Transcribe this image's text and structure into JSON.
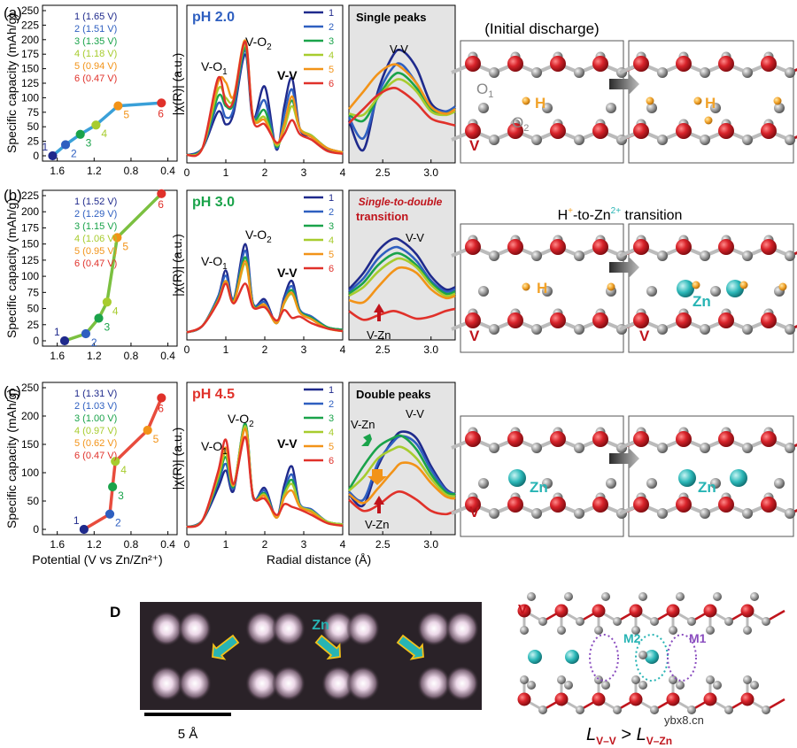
{
  "panel_letters": [
    "(a)",
    "(b)",
    "(c)"
  ],
  "panel_d_letter": "D",
  "chart_data": [
    {
      "type": "line",
      "panel": "a",
      "chart": "capacity-potential",
      "ylabel": "Specific capacity (mAh/g)",
      "xlabel": "Potential (V vs Zn/Zn²⁺)",
      "x_ticks": [
        "1.6",
        "1.2",
        "0.8",
        "0.4"
      ],
      "y_ticks": [
        "0",
        "25",
        "50",
        "75",
        "100",
        "125",
        "150",
        "175",
        "200",
        "225",
        "250"
      ],
      "xlim": [
        1.76,
        0.3
      ],
      "ylim": [
        0,
        250
      ],
      "legend": [
        "1 (1.65 V)",
        "2 (1.51 V)",
        "3 (1.35 V)",
        "4 (1.18 V)",
        "5 (0.94 V)",
        "6 (0.47 V)"
      ],
      "point_labels": [
        "1",
        "2",
        "3",
        "4",
        "5",
        "6"
      ],
      "points": [
        [
          1.65,
          0
        ],
        [
          1.51,
          19
        ],
        [
          1.35,
          37
        ],
        [
          1.18,
          53
        ],
        [
          0.94,
          86
        ],
        [
          0.47,
          91
        ]
      ]
    },
    {
      "type": "line",
      "panel": "b",
      "chart": "capacity-potential",
      "ylabel": "Specific capacity (mAh/g)",
      "xlabel": "Potential (V vs Zn/Zn²⁺)",
      "x_ticks": [
        "1.6",
        "1.2",
        "0.8",
        "0.4"
      ],
      "y_ticks": [
        "0",
        "25",
        "50",
        "75",
        "100",
        "125",
        "150",
        "175",
        "200",
        "225"
      ],
      "xlim": [
        1.76,
        0.3
      ],
      "ylim": [
        0,
        225
      ],
      "legend": [
        "1 (1.52 V)",
        "2 (1.29 V)",
        "3 (1.15 V)",
        "4 (1.06 V)",
        "5 (0.95 V)",
        "6 (0.47 V)"
      ],
      "point_labels": [
        "1",
        "2",
        "3",
        "4",
        "5",
        "6"
      ],
      "points": [
        [
          1.52,
          0
        ],
        [
          1.29,
          11
        ],
        [
          1.15,
          35
        ],
        [
          1.06,
          60
        ],
        [
          0.95,
          160
        ],
        [
          0.47,
          228
        ]
      ]
    },
    {
      "type": "line",
      "panel": "c",
      "chart": "capacity-potential",
      "ylabel": "Specific capacity (mAh/g)",
      "xlabel": "Potential (V vs Zn/Zn²⁺)",
      "x_ticks": [
        "1.6",
        "1.2",
        "0.8",
        "0.4"
      ],
      "y_ticks": [
        "0",
        "50",
        "100",
        "150",
        "200",
        "250"
      ],
      "xlim": [
        1.76,
        0.3
      ],
      "ylim": [
        0,
        250
      ],
      "legend": [
        "1 (1.31 V)",
        "2 (1.03 V)",
        "3 (1.00 V)",
        "4 (0.97 V)",
        "5 (0.62 V)",
        "6 (0.47 V)"
      ],
      "point_labels": [
        "1",
        "2",
        "3",
        "4",
        "5",
        "6"
      ],
      "points": [
        [
          1.31,
          0
        ],
        [
          1.03,
          27
        ],
        [
          1.0,
          75
        ],
        [
          0.97,
          120
        ],
        [
          0.62,
          175
        ],
        [
          0.47,
          232
        ]
      ]
    },
    {
      "type": "line",
      "panel": "a",
      "chart": "exafs-r-space",
      "title": "pH 2.0",
      "ylabel": "|χ(R)| (a.u.)",
      "xlabel": "Radial distance (Å)",
      "x_ticks": [
        "0",
        "1",
        "2",
        "3",
        "4"
      ],
      "xlim": [
        0,
        4
      ],
      "annotations": [
        "V-O1",
        "V-O2",
        "V-V"
      ],
      "legend": [
        "1",
        "2",
        "3",
        "4",
        "5",
        "6"
      ],
      "x": [
        0,
        0.4,
        0.8,
        1.0,
        1.2,
        1.5,
        1.7,
        2.0,
        2.3,
        2.5,
        2.7,
        2.9,
        3.2,
        3.6,
        4.0
      ],
      "series": [
        {
          "name": "1",
          "values": [
            0.03,
            0.08,
            0.34,
            0.25,
            0.33,
            0.75,
            0.29,
            0.52,
            0.07,
            0.38,
            0.58,
            0.22,
            0.16,
            0.07,
            0.05
          ]
        },
        {
          "name": "2",
          "values": [
            0.03,
            0.08,
            0.4,
            0.3,
            0.36,
            0.78,
            0.3,
            0.42,
            0.08,
            0.32,
            0.5,
            0.22,
            0.17,
            0.08,
            0.05
          ]
        },
        {
          "name": "3",
          "values": [
            0.03,
            0.08,
            0.45,
            0.38,
            0.4,
            0.8,
            0.3,
            0.35,
            0.09,
            0.26,
            0.42,
            0.22,
            0.17,
            0.08,
            0.05
          ]
        },
        {
          "name": "4",
          "values": [
            0.03,
            0.08,
            0.5,
            0.44,
            0.43,
            0.82,
            0.3,
            0.3,
            0.1,
            0.22,
            0.38,
            0.22,
            0.17,
            0.08,
            0.05
          ]
        },
        {
          "name": "5",
          "values": [
            0.03,
            0.08,
            0.55,
            0.55,
            0.45,
            0.85,
            0.3,
            0.28,
            0.11,
            0.25,
            0.45,
            0.22,
            0.16,
            0.08,
            0.05
          ]
        },
        {
          "name": "6",
          "values": [
            0.03,
            0.08,
            0.58,
            0.4,
            0.42,
            0.84,
            0.28,
            0.25,
            0.12,
            0.18,
            0.28,
            0.18,
            0.14,
            0.06,
            0.04
          ]
        }
      ]
    },
    {
      "type": "line",
      "panel": "b",
      "chart": "exafs-r-space",
      "title": "pH 3.0",
      "ylabel": "|χ(R)| (a.u.)",
      "xlabel": "Radial distance (Å)",
      "x_ticks": [
        "0",
        "1",
        "2",
        "3",
        "4"
      ],
      "xlim": [
        0,
        4
      ],
      "annotations": [
        "V-O1",
        "V-O2",
        "V-V"
      ],
      "legend": [
        "1",
        "2",
        "3",
        "4",
        "5",
        "6"
      ],
      "x": [
        0,
        0.4,
        0.8,
        1.0,
        1.2,
        1.5,
        1.7,
        2.0,
        2.3,
        2.5,
        2.7,
        2.9,
        3.2,
        3.6,
        4.0
      ],
      "series": [
        {
          "name": "1",
          "values": [
            0.03,
            0.08,
            0.3,
            0.5,
            0.28,
            0.7,
            0.25,
            0.28,
            0.1,
            0.3,
            0.42,
            0.2,
            0.15,
            0.07,
            0.05
          ]
        },
        {
          "name": "2",
          "values": [
            0.03,
            0.08,
            0.3,
            0.46,
            0.28,
            0.65,
            0.25,
            0.26,
            0.1,
            0.28,
            0.38,
            0.2,
            0.15,
            0.07,
            0.05
          ]
        },
        {
          "name": "3",
          "values": [
            0.03,
            0.08,
            0.28,
            0.42,
            0.27,
            0.6,
            0.24,
            0.24,
            0.1,
            0.26,
            0.35,
            0.19,
            0.14,
            0.07,
            0.05
          ]
        },
        {
          "name": "4",
          "values": [
            0.03,
            0.08,
            0.27,
            0.4,
            0.26,
            0.55,
            0.23,
            0.23,
            0.1,
            0.25,
            0.32,
            0.18,
            0.13,
            0.06,
            0.04
          ]
        },
        {
          "name": "5",
          "values": [
            0.03,
            0.08,
            0.27,
            0.42,
            0.26,
            0.57,
            0.23,
            0.24,
            0.1,
            0.26,
            0.33,
            0.18,
            0.13,
            0.06,
            0.04
          ]
        },
        {
          "name": "6",
          "values": [
            0.03,
            0.08,
            0.26,
            0.4,
            0.25,
            0.4,
            0.22,
            0.22,
            0.12,
            0.2,
            0.14,
            0.15,
            0.1,
            0.06,
            0.04
          ]
        }
      ]
    },
    {
      "type": "line",
      "panel": "c",
      "chart": "exafs-r-space",
      "title": "pH 4.5",
      "ylabel": "|χ(R)| (a.u.)",
      "xlabel": "Radial distance (Å)",
      "x_ticks": [
        "0",
        "1",
        "2",
        "3",
        "4"
      ],
      "xlim": [
        0,
        4
      ],
      "annotations": [
        "V-O1",
        "V-O2",
        "V-V"
      ],
      "legend": [
        "1",
        "2",
        "3",
        "4",
        "5",
        "6"
      ],
      "x": [
        0,
        0.4,
        0.8,
        1.0,
        1.2,
        1.5,
        1.7,
        2.0,
        2.3,
        2.5,
        2.7,
        2.9,
        3.2,
        3.6,
        4.0
      ],
      "series": [
        {
          "name": "1",
          "values": [
            0.03,
            0.08,
            0.32,
            0.45,
            0.3,
            0.78,
            0.25,
            0.32,
            0.1,
            0.34,
            0.48,
            0.2,
            0.16,
            0.07,
            0.05
          ]
        },
        {
          "name": "2",
          "values": [
            0.03,
            0.08,
            0.36,
            0.5,
            0.32,
            0.8,
            0.26,
            0.3,
            0.1,
            0.3,
            0.42,
            0.2,
            0.16,
            0.07,
            0.05
          ]
        },
        {
          "name": "3",
          "values": [
            0.03,
            0.08,
            0.38,
            0.55,
            0.33,
            0.8,
            0.26,
            0.28,
            0.1,
            0.28,
            0.38,
            0.19,
            0.15,
            0.07,
            0.05
          ]
        },
        {
          "name": "4",
          "values": [
            0.03,
            0.08,
            0.4,
            0.58,
            0.34,
            0.78,
            0.26,
            0.27,
            0.1,
            0.27,
            0.35,
            0.19,
            0.15,
            0.07,
            0.05
          ]
        },
        {
          "name": "5",
          "values": [
            0.03,
            0.08,
            0.42,
            0.62,
            0.34,
            0.76,
            0.26,
            0.26,
            0.1,
            0.25,
            0.3,
            0.18,
            0.14,
            0.06,
            0.04
          ]
        },
        {
          "name": "6",
          "values": [
            0.03,
            0.08,
            0.44,
            0.68,
            0.35,
            0.7,
            0.26,
            0.24,
            0.12,
            0.2,
            0.18,
            0.16,
            0.12,
            0.06,
            0.04
          ]
        }
      ]
    },
    {
      "type": "line",
      "panel": "a",
      "chart": "zoom",
      "title": "Single peaks",
      "x_ticks": [
        "2.5",
        "3.0"
      ],
      "xlim": [
        2.15,
        3.25
      ],
      "annotations": [
        "V-V"
      ],
      "x": [
        2.15,
        2.3,
        2.45,
        2.6,
        2.7,
        2.85,
        3.0,
        3.15,
        3.25
      ],
      "series": [
        {
          "name": "1",
          "values": [
            0.3,
            0.05,
            0.55,
            0.85,
            0.9,
            0.75,
            0.45,
            0.38,
            0.42
          ]
        },
        {
          "name": "2",
          "values": [
            0.33,
            0.15,
            0.52,
            0.75,
            0.78,
            0.62,
            0.42,
            0.38,
            0.42
          ]
        },
        {
          "name": "3",
          "values": [
            0.35,
            0.3,
            0.5,
            0.68,
            0.7,
            0.58,
            0.4,
            0.36,
            0.4
          ]
        },
        {
          "name": "4",
          "values": [
            0.36,
            0.35,
            0.5,
            0.63,
            0.65,
            0.55,
            0.38,
            0.35,
            0.38
          ]
        },
        {
          "name": "5",
          "values": [
            0.4,
            0.55,
            0.7,
            0.78,
            0.75,
            0.62,
            0.42,
            0.36,
            0.4
          ]
        },
        {
          "name": "6",
          "values": [
            0.28,
            0.4,
            0.52,
            0.58,
            0.55,
            0.45,
            0.32,
            0.28,
            0.26
          ]
        }
      ]
    },
    {
      "type": "line",
      "panel": "b",
      "chart": "zoom",
      "title_line1": "Single-to-double",
      "title_line2": "transition",
      "x_ticks": [
        "2.5",
        "3.0"
      ],
      "xlim": [
        2.15,
        3.25
      ],
      "annotations": [
        "V-V",
        "V-Zn"
      ],
      "x": [
        2.15,
        2.3,
        2.45,
        2.6,
        2.7,
        2.85,
        3.0,
        3.15,
        3.25
      ],
      "series": [
        {
          "name": "1",
          "values": [
            0.4,
            0.55,
            0.75,
            0.86,
            0.84,
            0.72,
            0.52,
            0.4,
            0.42
          ]
        },
        {
          "name": "2",
          "values": [
            0.38,
            0.5,
            0.68,
            0.78,
            0.77,
            0.66,
            0.48,
            0.38,
            0.4
          ]
        },
        {
          "name": "3",
          "values": [
            0.36,
            0.46,
            0.62,
            0.72,
            0.72,
            0.62,
            0.46,
            0.36,
            0.38
          ]
        },
        {
          "name": "4",
          "values": [
            0.34,
            0.42,
            0.56,
            0.66,
            0.68,
            0.6,
            0.44,
            0.34,
            0.36
          ]
        },
        {
          "name": "5",
          "values": [
            0.3,
            0.28,
            0.42,
            0.56,
            0.6,
            0.55,
            0.4,
            0.32,
            0.34
          ]
        },
        {
          "name": "6",
          "values": [
            0.2,
            0.12,
            0.16,
            0.2,
            0.18,
            0.13,
            0.15,
            0.2,
            0.22
          ]
        }
      ]
    },
    {
      "type": "line",
      "panel": "c",
      "chart": "zoom",
      "title": "Double peaks",
      "x_ticks": [
        "2.5",
        "3.0"
      ],
      "xlim": [
        2.15,
        3.25
      ],
      "annotations": [
        "V-V",
        "V-Zn",
        "V-Zn"
      ],
      "x": [
        2.15,
        2.3,
        2.45,
        2.6,
        2.7,
        2.85,
        3.0,
        3.15,
        3.25
      ],
      "series": [
        {
          "name": "1",
          "values": [
            0.3,
            0.2,
            0.55,
            0.78,
            0.86,
            0.8,
            0.55,
            0.35,
            0.3
          ]
        },
        {
          "name": "2",
          "values": [
            0.32,
            0.25,
            0.58,
            0.76,
            0.82,
            0.75,
            0.52,
            0.34,
            0.3
          ]
        },
        {
          "name": "3",
          "values": [
            0.34,
            0.55,
            0.72,
            0.8,
            0.82,
            0.7,
            0.48,
            0.32,
            0.3
          ]
        },
        {
          "name": "4",
          "values": [
            0.33,
            0.45,
            0.62,
            0.7,
            0.72,
            0.62,
            0.44,
            0.3,
            0.28
          ]
        },
        {
          "name": "5",
          "values": [
            0.3,
            0.22,
            0.35,
            0.5,
            0.58,
            0.55,
            0.4,
            0.28,
            0.26
          ]
        },
        {
          "name": "6",
          "values": [
            0.25,
            0.15,
            0.2,
            0.3,
            0.32,
            0.25,
            0.15,
            0.12,
            0.15
          ]
        }
      ]
    }
  ],
  "series_colors": [
    "#1f2a8c",
    "#2e5fc0",
    "#1aa34a",
    "#a7cc2e",
    "#f29318",
    "#e0312a"
  ],
  "capacity_line_colors": [
    "#3aa0d8",
    "#7bc040",
    "#e84c3d"
  ],
  "zoom_bg": "#e4e4e4",
  "structures": {
    "a_title": "(Initial discharge)",
    "a_labels": [
      "O",
      "1",
      "O",
      "2",
      "H",
      "H",
      "V"
    ],
    "b_title_part1": "H",
    "b_title_part2": "-to-Zn",
    "b_title_part3": " transition",
    "b_title_sup1": "+",
    "b_title_sup2": "2+",
    "b_labels": [
      "H",
      "Zn",
      "V",
      "V"
    ],
    "c_labels": [
      "Zn",
      "Zn",
      "V"
    ],
    "atom_v_color": "#c0141c",
    "atom_o_color": "#9a9a9a",
    "atom_h_color": "#f2a32a",
    "atom_zn_color": "#27b4b4"
  },
  "panel_d": {
    "stem_label": "Zn",
    "scale_label": "5 Å",
    "model_labels": {
      "v": "V",
      "m2": "M2",
      "m1": "M1"
    },
    "equation_L1": "L",
    "equation_sub1": "V–V",
    "equation_gt": " > ",
    "equation_L2": "L",
    "equation_sub2": "V–Zn"
  },
  "watermark": "ybx8.cn"
}
